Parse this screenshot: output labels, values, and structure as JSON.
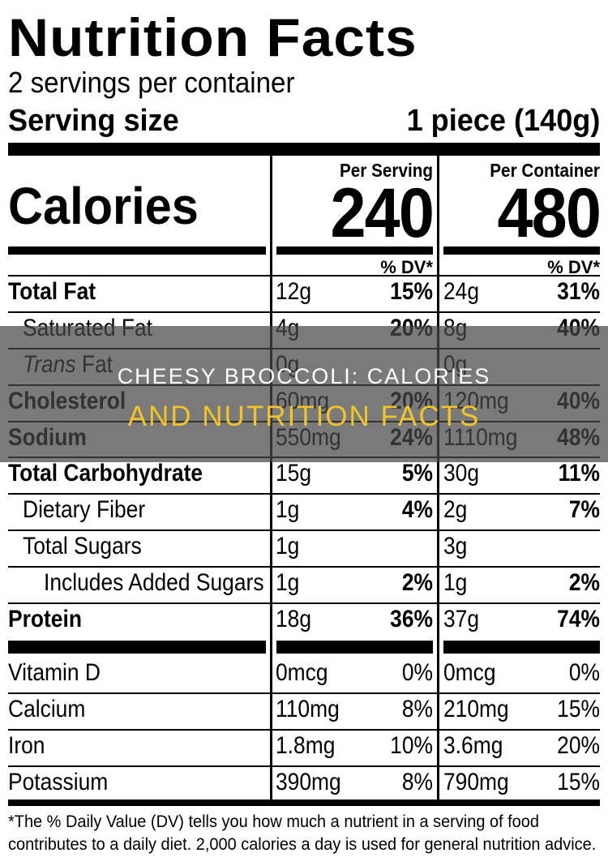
{
  "label": {
    "title": "Nutrition Facts",
    "servings_per_container": "2 servings per container",
    "serving_size_label": "Serving size",
    "serving_size_value": "1 piece (140g)",
    "calories_label": "Calories",
    "per_serving_label": "Per Serving",
    "per_container_label": "Per Container",
    "calories_per_serving": "240",
    "calories_per_container": "480",
    "dv_label": "% DV*",
    "rows": [
      {
        "name": "Total Fat",
        "serving_amt": "12g",
        "serving_dv": "15%",
        "container_amt": "24g",
        "container_dv": "31%"
      },
      {
        "name": "Saturated Fat",
        "serving_amt": "4g",
        "serving_dv": "20%",
        "container_amt": "8g",
        "container_dv": "40%"
      },
      {
        "name_italic": "Trans",
        "name": "Fat",
        "serving_amt": "0g",
        "serving_dv": "",
        "container_amt": "0g",
        "container_dv": ""
      },
      {
        "name": "Cholesterol",
        "serving_amt": "60mg",
        "serving_dv": "20%",
        "container_amt": "120mg",
        "container_dv": "40%"
      },
      {
        "name": "Sodium",
        "serving_amt": "550mg",
        "serving_dv": "24%",
        "container_amt": "1110mg",
        "container_dv": "48%"
      },
      {
        "name": "Total Carbohydrate",
        "serving_amt": "15g",
        "serving_dv": "5%",
        "container_amt": "30g",
        "container_dv": "11%"
      },
      {
        "name": "Dietary Fiber",
        "serving_amt": "1g",
        "serving_dv": "4%",
        "container_amt": "2g",
        "container_dv": "7%"
      },
      {
        "name": "Total Sugars",
        "serving_amt": "1g",
        "serving_dv": "",
        "container_amt": "3g",
        "container_dv": ""
      },
      {
        "name": "Includes Added Sugars",
        "serving_amt": "1g",
        "serving_dv": "2%",
        "container_amt": "1g",
        "container_dv": "2%"
      },
      {
        "name": "Protein",
        "serving_amt": "18g",
        "serving_dv": "36%",
        "container_amt": "37g",
        "container_dv": "74%"
      }
    ],
    "vitamins": [
      {
        "name": "Vitamin D",
        "serving_amt": "0mcg",
        "serving_dv": "0%",
        "container_amt": "0mcg",
        "container_dv": "0%"
      },
      {
        "name": "Calcium",
        "serving_amt": "110mg",
        "serving_dv": "8%",
        "container_amt": "210mg",
        "container_dv": "15%"
      },
      {
        "name": "Iron",
        "serving_amt": "1.8mg",
        "serving_dv": "10%",
        "container_amt": "3.6mg",
        "container_dv": "20%"
      },
      {
        "name": "Potassium",
        "serving_amt": "390mg",
        "serving_dv": "8%",
        "container_amt": "790mg",
        "container_dv": "15%"
      }
    ],
    "footnote_line1": "*The % Daily Value (DV) tells you how much a nutrient in a serving of food",
    "footnote_line2": "contributes to a daily diet. 2,000 calories a day is used for general nutrition advice."
  },
  "banner": {
    "line1": "CHEESY BROCCOLI: CALORIES",
    "line2": "AND NUTRITION FACTS",
    "background_color": "#464646",
    "line1_color": "#ffffff",
    "line2_color": "#f2c428"
  }
}
